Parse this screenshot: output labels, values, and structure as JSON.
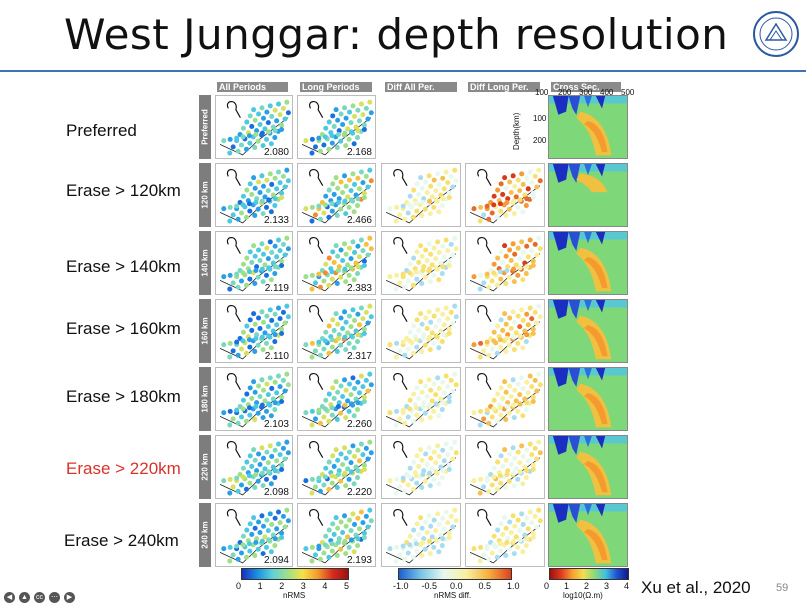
{
  "title": "West Junggar: depth resolution",
  "columns": [
    "All Periods",
    "Long Periods",
    "Diff All Per.",
    "Diff Long Per.",
    "Cross Sec."
  ],
  "rows": [
    {
      "label": "Preferred",
      "side": "Preferred",
      "highlight": false,
      "all": "2.080",
      "long": "2.168"
    },
    {
      "label": "Erase > 120km",
      "side": "120 km",
      "highlight": false,
      "all": "2.133",
      "long": "2.466"
    },
    {
      "label": "Erase > 140km",
      "side": "140 km",
      "highlight": false,
      "all": "2.119",
      "long": "2.383"
    },
    {
      "label": "Erase > 160km",
      "side": "160 km",
      "highlight": false,
      "all": "2.110",
      "long": "2.317"
    },
    {
      "label": "Erase > 180km",
      "side": "180 km",
      "highlight": false,
      "all": "2.103",
      "long": "2.260"
    },
    {
      "label": "Erase > 220km",
      "side": "220 km",
      "highlight": true,
      "all": "2.098",
      "long": "2.220"
    },
    {
      "label": "Erase > 240km",
      "side": "240 km",
      "highlight": false,
      "all": "2.094",
      "long": "2.193"
    }
  ],
  "cross_section": {
    "x_ticks": [
      "100",
      "200",
      "300",
      "400",
      "500"
    ],
    "y_ticks": [
      "100",
      "200"
    ],
    "ylabel": "Depth(km)"
  },
  "colorbars": [
    {
      "ticks": [
        "0",
        "1",
        "2",
        "3",
        "4",
        "5"
      ],
      "label": "nRMS"
    },
    {
      "ticks": [
        "-1.0",
        "-0.5",
        "0.0",
        "0.5",
        "1.0"
      ],
      "label": "nRMS diff."
    },
    {
      "ticks": [
        "0",
        "1",
        "2",
        "3",
        "4"
      ],
      "label": "log10(Ω.m)"
    }
  ],
  "citation": "Xu et al., 2020",
  "page_number": "59",
  "colors": {
    "title_rule": "#3d74b8",
    "highlight": "#d9322b"
  }
}
